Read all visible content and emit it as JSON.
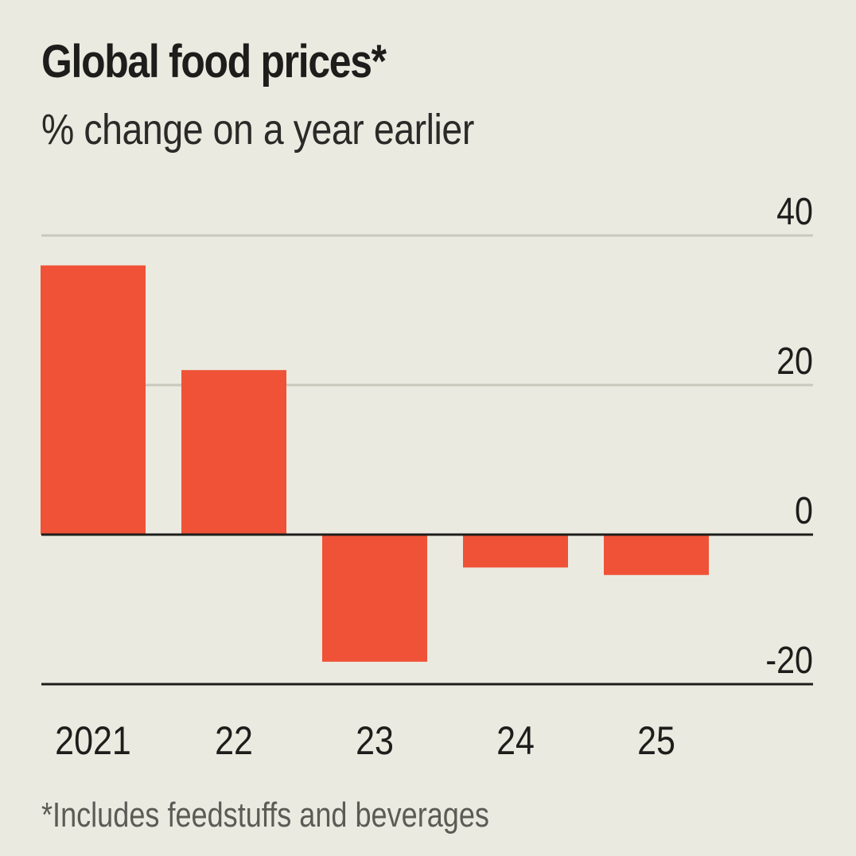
{
  "header": {
    "title": "Global food prices*",
    "subtitle": "% change on a year earlier"
  },
  "footnote": "*Includes feedstuffs and beverages",
  "colors": {
    "background": "#ebeae0",
    "bar": "#ef5237",
    "gridline": "#c9c8bd",
    "axis": "#1d1d1b"
  },
  "chart_data": {
    "type": "bar",
    "title": "Global food prices*",
    "subtitle": "% change on a year earlier",
    "xlabel": "",
    "ylabel": "% change on a year earlier",
    "categories": [
      "2021",
      "22",
      "23",
      "24",
      "25"
    ],
    "values": [
      36,
      22,
      -17,
      -4.4,
      -5.4
    ],
    "ylim": [
      -20,
      40
    ],
    "yticks": [
      40,
      20,
      0,
      -20
    ],
    "ytick_labels": [
      "40",
      "20",
      "0",
      "-20"
    ],
    "y_axis_side": "right",
    "grid": true,
    "legend": "none",
    "footnote": "*Includes feedstuffs and beverages"
  }
}
